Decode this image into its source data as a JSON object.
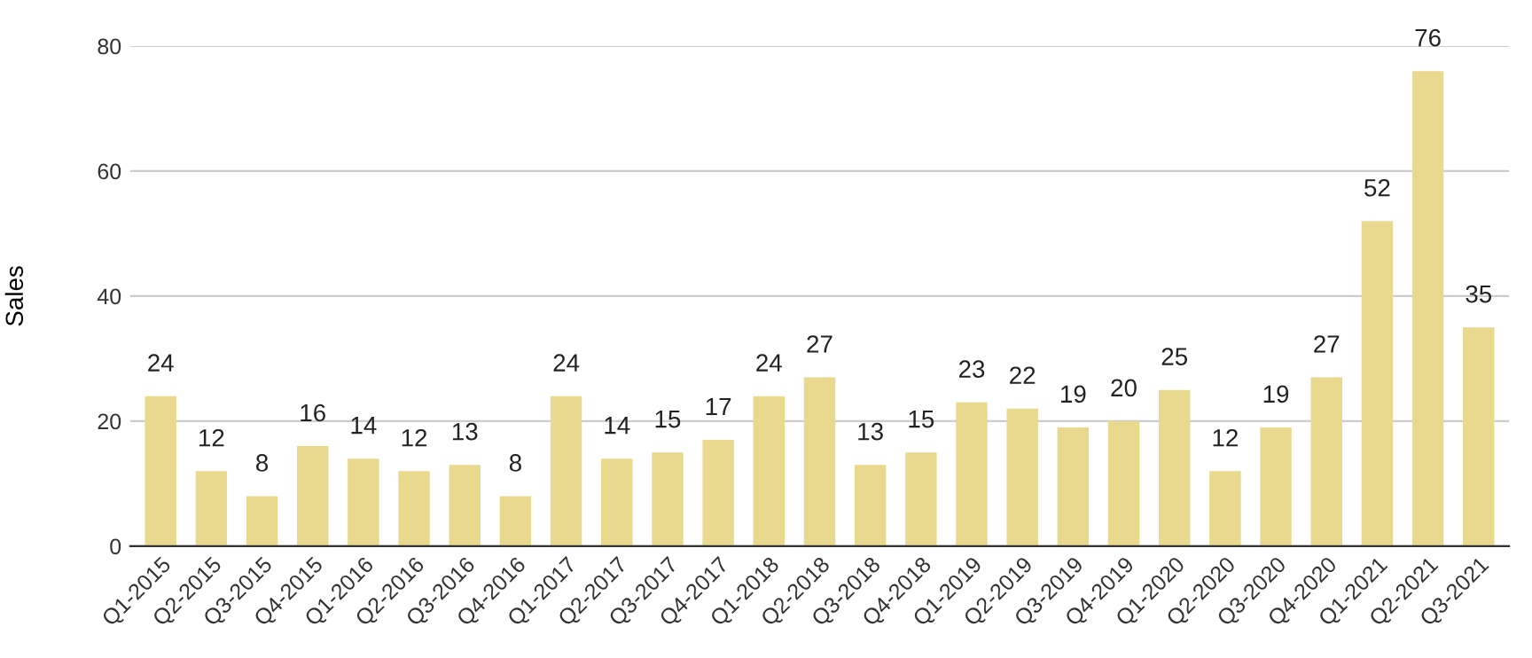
{
  "chart_data": {
    "type": "bar",
    "ylabel": "Sales",
    "categories": [
      "Q1-2015",
      "Q2-2015",
      "Q3-2015",
      "Q4-2015",
      "Q1-2016",
      "Q2-2016",
      "Q3-2016",
      "Q4-2016",
      "Q1-2017",
      "Q2-2017",
      "Q3-2017",
      "Q4-2017",
      "Q1-2018",
      "Q2-2018",
      "Q3-2018",
      "Q4-2018",
      "Q1-2019",
      "Q2-2019",
      "Q3-2019",
      "Q4-2019",
      "Q1-2020",
      "Q2-2020",
      "Q3-2020",
      "Q4-2020",
      "Q1-2021",
      "Q2-2021",
      "Q3-2021"
    ],
    "values": [
      24,
      12,
      8,
      16,
      14,
      12,
      13,
      8,
      24,
      14,
      15,
      17,
      24,
      27,
      13,
      15,
      23,
      22,
      19,
      20,
      25,
      12,
      19,
      27,
      52,
      76,
      35
    ],
    "color": "#e8d98e",
    "ylim": [
      0,
      80
    ],
    "yticks": [
      0,
      20,
      40,
      60,
      80
    ],
    "grid": "y",
    "data_labels": true,
    "legend": false
  }
}
